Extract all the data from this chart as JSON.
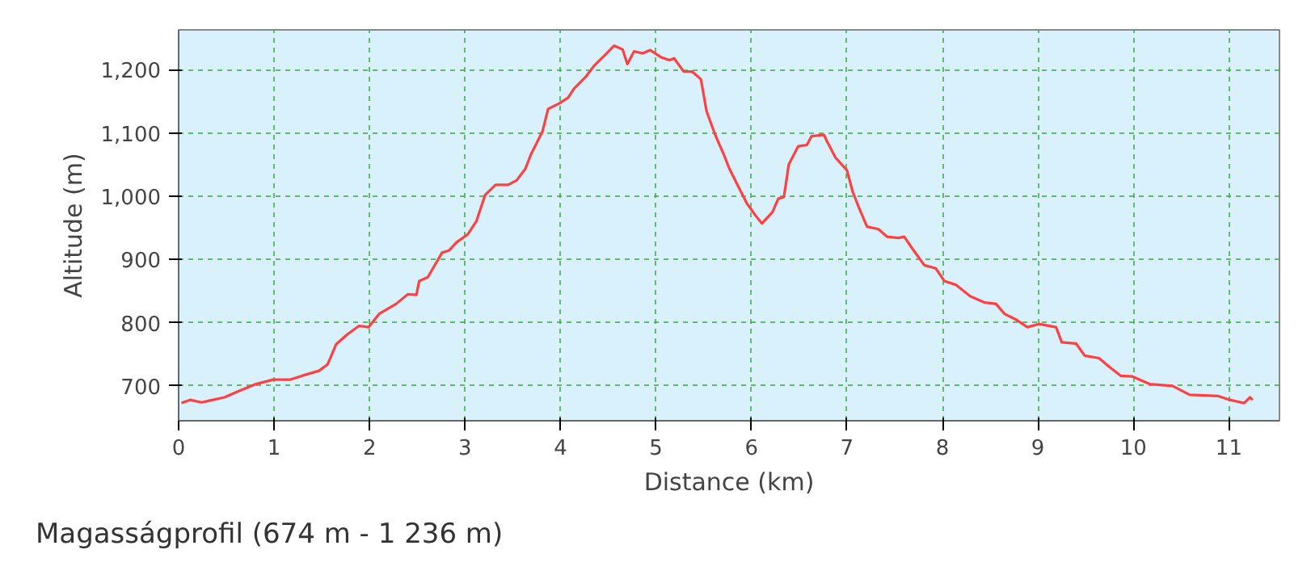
{
  "chart_data": {
    "type": "line",
    "xlabel": "Distance (km)",
    "ylabel": "Altitude (m)",
    "annotations": [
      "Magasságprofil (674 m - 1 236 m)"
    ],
    "x": [
      0.03,
      0.12,
      0.24,
      0.48,
      0.63,
      0.81,
      0.99,
      1.17,
      1.29,
      1.47,
      1.56,
      1.65,
      1.77,
      1.89,
      1.99,
      2.1,
      2.28,
      2.4,
      2.49,
      2.52,
      2.61,
      2.76,
      2.83,
      2.91,
      3.03,
      3.12,
      3.21,
      3.32,
      3.45,
      3.54,
      3.63,
      3.69,
      3.81,
      3.87,
      3.99,
      4.08,
      4.14,
      4.26,
      4.35,
      4.47,
      4.56,
      4.65,
      4.7,
      4.77,
      4.86,
      4.94,
      5.05,
      5.14,
      5.19,
      5.29,
      5.38,
      5.47,
      5.53,
      5.62,
      5.71,
      5.77,
      5.86,
      5.95,
      6.04,
      6.11,
      6.22,
      6.28,
      6.34,
      6.39,
      6.49,
      6.58,
      6.63,
      6.76,
      6.79,
      6.88,
      7.0,
      7.06,
      7.12,
      7.21,
      7.33,
      7.42,
      7.54,
      7.6,
      7.69,
      7.81,
      7.93,
      8.02,
      8.14,
      8.29,
      8.44,
      8.56,
      8.65,
      8.77,
      8.89,
      9.01,
      9.19,
      9.25,
      9.4,
      9.49,
      9.64,
      9.75,
      9.87,
      9.99,
      10.17,
      10.41,
      10.59,
      10.89,
      11.01,
      11.16,
      11.22,
      11.25
    ],
    "series": [
      {
        "color": "#ff4040",
        "values": [
          673,
          678,
          674,
          682,
          692,
          703,
          710,
          710,
          716,
          724,
          734,
          766,
          782,
          795,
          793,
          814,
          830,
          845,
          844,
          866,
          872,
          911,
          914,
          927,
          940,
          961,
          1002,
          1018,
          1018,
          1025,
          1043,
          1066,
          1102,
          1138,
          1147,
          1156,
          1170,
          1188,
          1206,
          1224,
          1238,
          1232,
          1209,
          1229,
          1226,
          1231,
          1220,
          1215,
          1218,
          1197,
          1197,
          1185,
          1134,
          1097,
          1066,
          1043,
          1016,
          989,
          970,
          957,
          975,
          996,
          999,
          1050,
          1079,
          1081,
          1095,
          1097,
          1087,
          1061,
          1041,
          1007,
          984,
          952,
          948,
          936,
          934,
          936,
          916,
          891,
          886,
          866,
          860,
          842,
          832,
          830,
          814,
          805,
          793,
          798,
          793,
          769,
          767,
          748,
          744,
          730,
          716,
          715,
          703,
          700,
          686,
          684,
          678,
          673,
          682,
          678
        ]
      }
    ],
    "xlim": [
      0,
      11.53
    ],
    "ylim": [
      645,
      1263
    ],
    "xticks": [
      0,
      1,
      2,
      3,
      4,
      5,
      6,
      7,
      8,
      9,
      10,
      11
    ],
    "yticks": [
      {
        "value": 700,
        "label": "700"
      },
      {
        "value": 800,
        "label": "800"
      },
      {
        "value": 900,
        "label": "900"
      },
      {
        "value": 1000,
        "label": "1,000"
      },
      {
        "value": 1100,
        "label": "1,100"
      },
      {
        "value": 1200,
        "label": "1,200"
      }
    ],
    "grid": true
  }
}
